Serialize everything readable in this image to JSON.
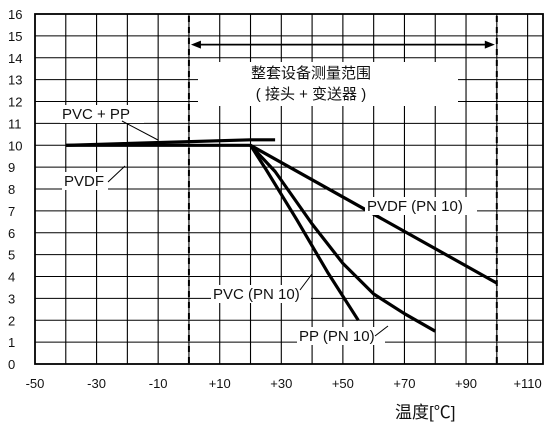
{
  "chart_data": {
    "type": "line",
    "title": "",
    "xlabel": "温度[℃]",
    "ylabel": "",
    "xlim": [
      -50,
      115
    ],
    "ylim": [
      0,
      16
    ],
    "x_tick_labels": [
      "-50",
      "-30",
      "-10",
      "+10",
      "+30",
      "+50",
      "+70",
      "+90",
      "+110"
    ],
    "x_ticks": [
      -50,
      -30,
      -10,
      10,
      30,
      50,
      70,
      90,
      110
    ],
    "y_ticks": [
      0,
      1,
      2,
      3,
      4,
      5,
      6,
      7,
      8,
      9,
      10,
      11,
      12,
      13,
      14,
      15,
      16
    ],
    "grid": true,
    "series": [
      {
        "name": "PVC + PP",
        "x": [
          -40,
          20,
          28
        ],
        "y": [
          10,
          10.25,
          10.25
        ]
      },
      {
        "name": "PVDF",
        "x": [
          -40,
          20,
          100
        ],
        "y": [
          10,
          10,
          3.7
        ]
      },
      {
        "name": "PVC (PN 10)",
        "x": [
          20,
          25,
          35,
          45,
          55
        ],
        "y": [
          10,
          8.9,
          6.6,
          4.2,
          2.0
        ]
      },
      {
        "name": "PP (PN 10)",
        "x": [
          20,
          28,
          40,
          50,
          60,
          70,
          80
        ],
        "y": [
          10,
          8.8,
          6.4,
          4.6,
          3.2,
          2.3,
          1.5
        ]
      }
    ],
    "series_labels": {
      "pvc_pp": "PVC + PP",
      "pvdf": "PVDF",
      "pvdf_pn10": "PVDF (PN 10)",
      "pvc_pn10": "PVC (PN 10)",
      "pp_pn10": "PP (PN 10)"
    },
    "range_annotation": {
      "x_from": 0,
      "x_to": 100,
      "line1": "整套设备测量范围",
      "line2": "( 接头 + 变送器 )"
    }
  }
}
